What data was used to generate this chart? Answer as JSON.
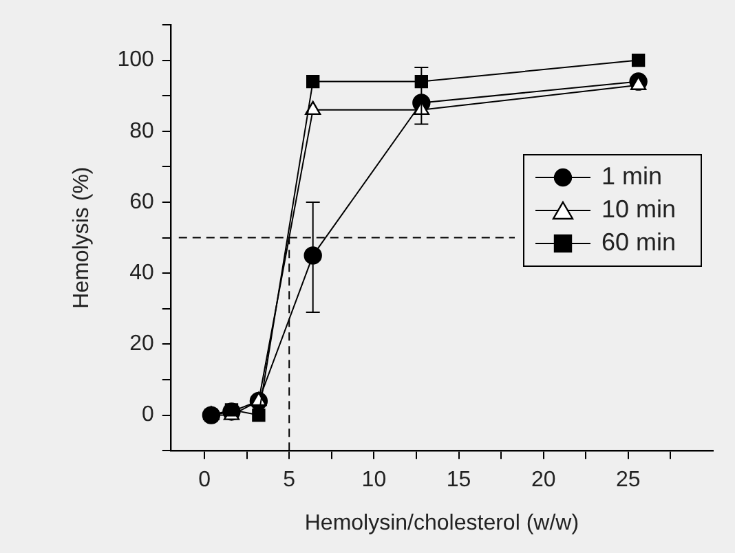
{
  "chart_data": {
    "type": "line",
    "xlabel": "Hemolysin/cholesterol (w/w)",
    "ylabel": "Hemolysis (%)",
    "x": [
      0.4,
      1.6,
      3.2,
      6.4,
      12.8,
      25.6
    ],
    "series": [
      {
        "name": "1 min",
        "color": "#000000",
        "marker": "circle",
        "values": [
          0,
          1,
          4,
          45,
          88,
          94
        ],
        "errors": [
          null,
          null,
          null,
          [
            29,
            60
          ],
          [
            82,
            98
          ],
          null
        ]
      },
      {
        "name": "10 min",
        "color": "#000000",
        "marker": "triangle",
        "values": [
          0,
          0,
          4,
          86,
          86,
          93
        ]
      },
      {
        "name": "60 min",
        "color": "#000000",
        "marker": "square",
        "values": [
          0,
          1.5,
          0,
          94,
          94,
          100
        ]
      }
    ],
    "xlim": [
      -2,
      30
    ],
    "xticks": [
      0,
      {
        "value": 2.5,
        "label": null
      },
      5,
      {
        "value": 7.5,
        "label": null
      },
      10,
      {
        "value": 12.5,
        "label": null
      },
      15,
      {
        "value": 17.5,
        "label": null
      },
      20,
      {
        "value": 22.5,
        "label": null
      },
      25,
      {
        "value": 27.5,
        "label": null
      }
    ],
    "ylim": [
      -10,
      110
    ],
    "yticks": [
      {
        "value": -10,
        "label": null
      },
      0,
      {
        "value": 10,
        "label": null
      },
      20,
      {
        "value": 30,
        "label": null
      },
      40,
      {
        "value": 50,
        "label": null
      },
      60,
      {
        "value": 70,
        "label": null
      },
      80,
      {
        "value": 90,
        "label": null
      },
      100,
      {
        "value": 110,
        "label": null
      }
    ],
    "ref_lines": [
      {
        "axis": "y",
        "value": 50,
        "line_style": "dashed"
      },
      {
        "axis": "x",
        "value": 5,
        "line_style": "dashed"
      }
    ],
    "legend": "right",
    "grid": false,
    "line_style": "solid"
  }
}
